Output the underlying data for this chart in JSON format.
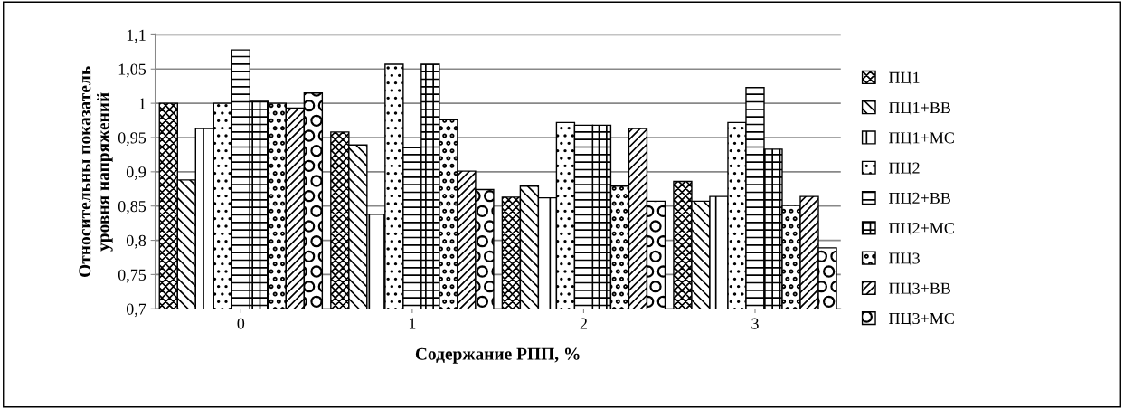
{
  "chart_data": {
    "type": "bar",
    "xlabel": "Содержание РПП, %",
    "ylabel": "Относительны показатель\nуровня напряжений",
    "categories": [
      "0",
      "1",
      "2",
      "3"
    ],
    "series": [
      {
        "name": "ПЦ1",
        "color": "#000000",
        "values": [
          1.0,
          0.958,
          0.863,
          0.886
        ]
      },
      {
        "name": "ПЦ1+ВВ",
        "color": "#000000",
        "values": [
          0.888,
          0.939,
          0.879,
          0.857
        ]
      },
      {
        "name": "ПЦ1+МС",
        "color": "#000000",
        "values": [
          0.963,
          0.838,
          0.862,
          0.864
        ]
      },
      {
        "name": "ПЦ2",
        "color": "#000000",
        "values": [
          1.0,
          1.057,
          0.972,
          0.972
        ]
      },
      {
        "name": "ПЦ2+ВВ",
        "color": "#000000",
        "values": [
          1.078,
          0.935,
          0.968,
          1.023
        ]
      },
      {
        "name": "ПЦ2+МС",
        "color": "#000000",
        "values": [
          1.003,
          1.057,
          0.968,
          0.933
        ]
      },
      {
        "name": "ПЦ3",
        "color": "#000000",
        "values": [
          1.0,
          0.976,
          0.879,
          0.851
        ]
      },
      {
        "name": "ПЦ3+ВВ",
        "color": "#000000",
        "values": [
          0.993,
          0.901,
          0.963,
          0.864
        ]
      },
      {
        "name": "ПЦ3+МС",
        "color": "#000000",
        "values": [
          1.015,
          0.874,
          0.857,
          0.789
        ]
      }
    ],
    "ylim": [
      0.7,
      1.1
    ],
    "yticks": [
      {
        "value": 0.7,
        "label": "0,7"
      },
      {
        "value": 0.75,
        "label": "0,75"
      },
      {
        "value": 0.8,
        "label": "0,8"
      },
      {
        "value": 0.85,
        "label": "0,85"
      },
      {
        "value": 0.9,
        "label": "0,9"
      },
      {
        "value": 0.95,
        "label": "0,95"
      },
      {
        "value": 1.0,
        "label": "1"
      },
      {
        "value": 1.05,
        "label": "1,05"
      },
      {
        "value": 1.1,
        "label": "1,1"
      }
    ],
    "grid": "y",
    "legend": "right"
  }
}
